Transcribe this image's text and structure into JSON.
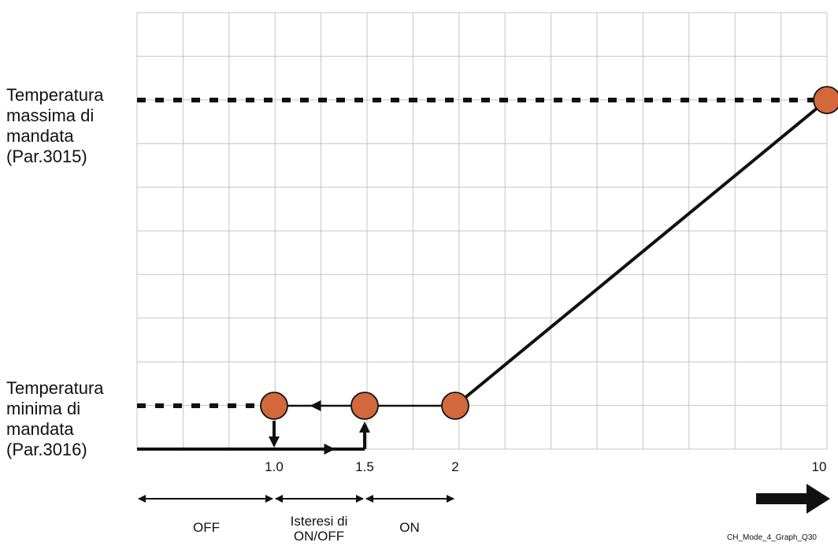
{
  "chart_data": {
    "type": "line",
    "y_labels": {
      "max": [
        "Temperatura",
        "massima di",
        "mandata",
        "(Par.3015)"
      ],
      "min": [
        "Temperatura",
        "minima di",
        "mandata",
        "(Par.3016)"
      ]
    },
    "x_ticks": [
      "1.0",
      "1.5",
      "2",
      "10"
    ],
    "series": [
      {
        "x": [
          2,
          10
        ],
        "y": [
          "min",
          "max"
        ]
      }
    ],
    "points": [
      {
        "x": 1.0,
        "y": "min"
      },
      {
        "x": 1.5,
        "y": "min"
      },
      {
        "x": 2,
        "y": "min"
      },
      {
        "x": 10,
        "y": "max"
      }
    ],
    "bands": [
      {
        "label": [
          "OFF"
        ]
      },
      {
        "label": [
          "Isteresi di",
          "ON/OFF"
        ]
      },
      {
        "label": [
          "ON"
        ]
      }
    ],
    "grid": true,
    "marker_color": "#d2683c",
    "caption": "CH_Mode_4_Graph_Q30"
  }
}
